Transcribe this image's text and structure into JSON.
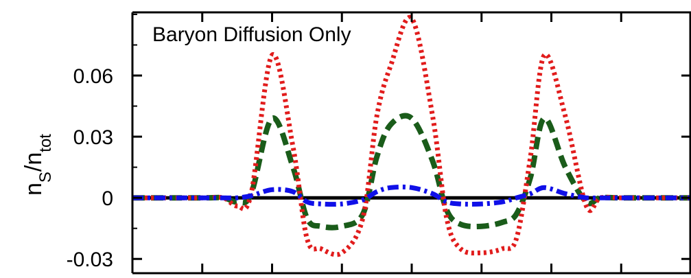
{
  "chart_data": {
    "type": "line",
    "title": "",
    "annotation": "Baryon Diffusion Only",
    "ylabel_main": "n",
    "ylabel_sub1": "S",
    "ylabel_mid": "/n",
    "ylabel_sub2": "tot",
    "yticks": [
      {
        "value": 0.06,
        "label": "0.06"
      },
      {
        "value": 0.03,
        "label": "0.03"
      },
      {
        "value": 0,
        "label": "0"
      },
      {
        "value": -0.03,
        "label": "-0.03"
      }
    ],
    "ylim": [
      -0.037,
      0.091
    ],
    "xlim": [
      0,
      8
    ],
    "xticks": [
      1,
      2,
      3,
      4,
      5,
      6,
      7
    ],
    "grid": false,
    "x": [
      0,
      1.0,
      1.3,
      1.5,
      1.7,
      2.0,
      2.3,
      2.5,
      2.7,
      3.0,
      3.3,
      3.5,
      3.7,
      4.0,
      4.3,
      4.5,
      4.7,
      5.0,
      5.3,
      5.5,
      5.7,
      5.9,
      6.2,
      6.5,
      6.7,
      7.0,
      7.5,
      8.0
    ],
    "series": [
      {
        "color": "#e11c1c",
        "style": "dotted",
        "values": [
          0,
          0,
          0,
          -0.004,
          0.002,
          0.07,
          0.025,
          -0.02,
          -0.025,
          -0.027,
          -0.01,
          0.04,
          0.065,
          0.088,
          0.04,
          -0.01,
          -0.025,
          -0.027,
          -0.025,
          -0.02,
          0.02,
          0.07,
          0.04,
          -0.004,
          0,
          0,
          0,
          0
        ]
      },
      {
        "color": "#1a5c1a",
        "style": "dashed",
        "values": [
          0,
          0,
          0,
          -0.002,
          0.002,
          0.039,
          0.015,
          -0.01,
          -0.014,
          -0.014,
          -0.008,
          0.02,
          0.036,
          0.039,
          0.018,
          -0.006,
          -0.013,
          -0.014,
          -0.012,
          -0.008,
          0.01,
          0.039,
          0.015,
          -0.002,
          0,
          0,
          0,
          0
        ]
      },
      {
        "color": "#1010e8",
        "style": "dashdot",
        "values": [
          0,
          0,
          0,
          0,
          0.001,
          0.004,
          0.003,
          -0.002,
          -0.003,
          -0.003,
          -0.001,
          0.003,
          0.005,
          0.005,
          0.002,
          -0.002,
          -0.003,
          -0.003,
          -0.002,
          0,
          0.002,
          0.005,
          0.002,
          0,
          0,
          0,
          0,
          0
        ]
      },
      {
        "color": "#000000",
        "style": "solid",
        "values": [
          0,
          0,
          0,
          0,
          0,
          0,
          0,
          0,
          0,
          0,
          0,
          0,
          0,
          0,
          0,
          0,
          0,
          0,
          0,
          0,
          0,
          0,
          0,
          0,
          0,
          0,
          0,
          0
        ]
      }
    ]
  }
}
